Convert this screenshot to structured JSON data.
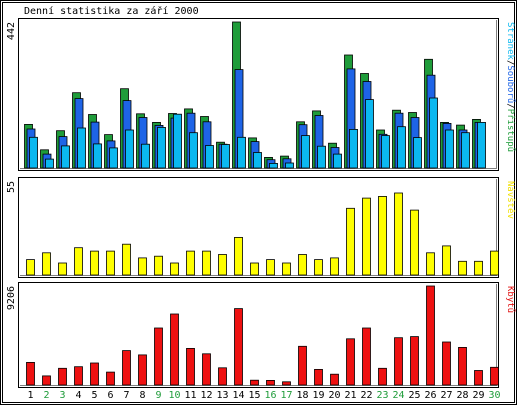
{
  "chart_data": [
    {
      "type": "bar",
      "title": "Denní statistika za září 2000",
      "ymax_label": "442",
      "ylim": [
        0,
        442
      ],
      "series_label": {
        "parts": [
          "Stránek",
          "/",
          "Souborů",
          "/",
          "Přístupů"
        ],
        "colors": [
          "#0bb8f0",
          "#000000",
          "#1e64e6",
          "#000000",
          "#1f9c3a"
        ]
      },
      "series": [
        {
          "name": "Přístupů",
          "color": "#1f9c3a",
          "values": [
            132,
            55,
            113,
            228,
            162,
            101,
            240,
            164,
            138,
            165,
            179,
            156,
            78,
            442,
            91,
            32,
            36,
            140,
            173,
            75,
            342,
            286,
            115,
            175,
            168,
            329,
            138,
            130,
            147,
            0
          ]
        },
        {
          "name": "Souborů",
          "color": "#1e64e6",
          "values": [
            118,
            42,
            95,
            210,
            139,
            82,
            204,
            153,
            129,
            151,
            166,
            140,
            72,
            298,
            80,
            25,
            28,
            131,
            159,
            62,
            300,
            262,
            102,
            166,
            153,
            281,
            135,
            115,
            138,
            0
          ]
        },
        {
          "name": "Stránek",
          "color": "#0bb8f0",
          "values": [
            93,
            27,
            67,
            121,
            73,
            61,
            115,
            72,
            123,
            163,
            107,
            68,
            71,
            93,
            47,
            14,
            15,
            98,
            66,
            42,
            117,
            207,
            98,
            125,
            92,
            212,
            115,
            107,
            138,
            0
          ]
        }
      ]
    },
    {
      "type": "bar",
      "ymax_label": "55",
      "ylim": [
        0,
        55
      ],
      "series_label": {
        "parts": [
          "Návštěv"
        ],
        "colors": [
          "#f0e000"
        ]
      },
      "series": [
        {
          "name": "Návštěv",
          "color": "#ffff00",
          "values": [
            9,
            13,
            7,
            16,
            14,
            14,
            18,
            10,
            11,
            7,
            14,
            14,
            12,
            22,
            7,
            9,
            7,
            12,
            9,
            10,
            39,
            45,
            46,
            48,
            38,
            13,
            17,
            8,
            8,
            14
          ]
        }
      ]
    },
    {
      "type": "bar",
      "ymax_label": "9206",
      "ylim": [
        0,
        9206
      ],
      "series_label": {
        "parts": [
          "Kbytů"
        ],
        "colors": [
          "#e01010"
        ]
      },
      "series": [
        {
          "name": "Kbytů",
          "color": "#ee1111",
          "values": [
            2100,
            850,
            1550,
            1700,
            2050,
            1200,
            3200,
            2800,
            5300,
            6600,
            3400,
            2900,
            1600,
            7100,
            450,
            430,
            300,
            3600,
            1450,
            1000,
            4300,
            5300,
            1550,
            4400,
            4500,
            9206,
            4000,
            3500,
            1350,
            1650
          ]
        }
      ]
    }
  ],
  "days": {
    "labels": [
      "1",
      "2",
      "3",
      "4",
      "5",
      "6",
      "7",
      "8",
      "9",
      "10",
      "11",
      "12",
      "13",
      "14",
      "15",
      "16",
      "17",
      "18",
      "19",
      "20",
      "21",
      "22",
      "23",
      "24",
      "25",
      "26",
      "27",
      "28",
      "29",
      "30"
    ],
    "colors": [
      "#000000",
      "#1f9c3a",
      "#1f9c3a",
      "#000000",
      "#000000",
      "#000000",
      "#000000",
      "#000000",
      "#1f9c3a",
      "#1f9c3a",
      "#000000",
      "#000000",
      "#000000",
      "#000000",
      "#000000",
      "#1f9c3a",
      "#1f9c3a",
      "#000000",
      "#000000",
      "#000000",
      "#000000",
      "#000000",
      "#1f9c3a",
      "#1f9c3a",
      "#000000",
      "#000000",
      "#000000",
      "#000000",
      "#000000",
      "#1f9c3a"
    ]
  }
}
